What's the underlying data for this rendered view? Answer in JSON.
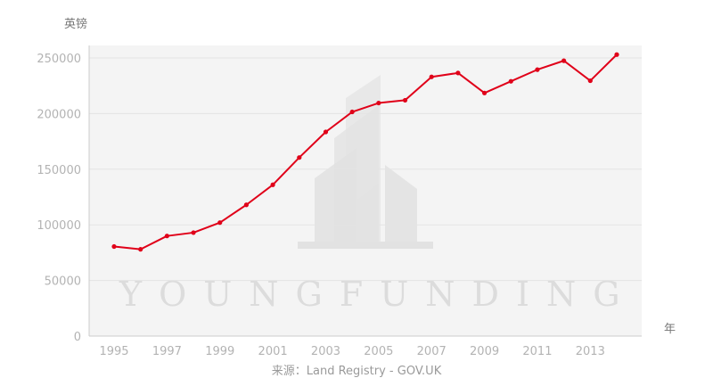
{
  "chart_data": {
    "type": "line",
    "ylabel": "英镑",
    "xlabel": "年",
    "x": [
      1995,
      1996,
      1997,
      1998,
      1999,
      2000,
      2001,
      2002,
      2003,
      2004,
      2005,
      2006,
      2007,
      2008,
      2009,
      2010,
      2011,
      2012,
      2013,
      2014
    ],
    "series": [
      {
        "values": [
          80500,
          78000,
          90000,
          93000,
          102000,
          118000,
          136000,
          160500,
          183500,
          201500,
          209500,
          212000,
          233000,
          236500,
          218500,
          229000,
          239500,
          247500,
          229500,
          253000
        ]
      }
    ],
    "xticks": [
      "1995",
      "1997",
      "1999",
      "2001",
      "2003",
      "2005",
      "2007",
      "2009",
      "2011",
      "2013"
    ],
    "yticks": [
      "0",
      "50000",
      "100000",
      "150000",
      "200000",
      "250000"
    ],
    "ylim": [
      0,
      250000
    ],
    "grid": true,
    "line_color": "#e00019",
    "plot_background": "#f4f4f4"
  },
  "source_text": "来源：Land Registry - GOV.UK",
  "watermark_text": "YOUNGFUNDING"
}
